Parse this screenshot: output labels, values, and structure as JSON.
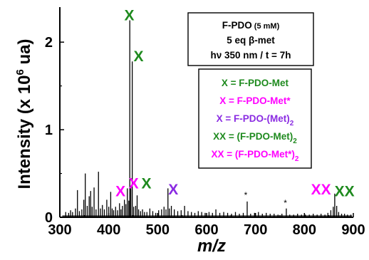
{
  "chart_data": {
    "type": "line",
    "title": "",
    "xlabel": "m/z",
    "ylabel_main": "Intensity (x 10",
    "ylabel_sup": "6",
    "ylabel_tail": " ua)",
    "xlim": [
      300,
      900
    ],
    "ylim": [
      0,
      2.4
    ],
    "x_ticks": [
      300,
      400,
      500,
      600,
      700,
      800,
      900
    ],
    "y_ticks": [
      0,
      1,
      2
    ],
    "grid": false,
    "colors": {
      "green": "#1e8a1e",
      "magenta": "#ff00ff",
      "purple": "#8a2be2",
      "spectrum": "#000000"
    },
    "conditions_box": {
      "line1_main": "F-PDO",
      "line1_small": " (5 mM)",
      "line2": "5 eq β-met",
      "line3": "hν 350 nm / t = 7h"
    },
    "legend": [
      {
        "label": "X = F-PDO-Met",
        "sub": "",
        "color": "green"
      },
      {
        "label": "X = F-PDO-Met*",
        "sub": "",
        "color": "magenta"
      },
      {
        "label": "X = F-PDO-(Met)",
        "sub": "2",
        "color": "purple"
      },
      {
        "label": "XX = (F-PDO-Met)",
        "sub": "2",
        "color": "green"
      },
      {
        "label": "XX = (F-PDO-Met*)",
        "sub": "2",
        "color": "magenta"
      }
    ],
    "peak_labels": [
      {
        "text": "X",
        "x": 442,
        "y": 2.25,
        "color": "green"
      },
      {
        "text": "X",
        "x": 461,
        "y": 1.78,
        "color": "green"
      },
      {
        "text": "X",
        "x": 424,
        "y": 0.24,
        "color": "magenta"
      },
      {
        "text": "X",
        "x": 451,
        "y": 0.33,
        "color": "magenta"
      },
      {
        "text": "X",
        "x": 477,
        "y": 0.33,
        "color": "green"
      },
      {
        "text": "X",
        "x": 532,
        "y": 0.26,
        "color": "purple"
      },
      {
        "text": "XX",
        "x": 834,
        "y": 0.26,
        "color": "magenta"
      },
      {
        "text": "XX",
        "x": 882,
        "y": 0.24,
        "color": "green"
      }
    ],
    "stars": [
      {
        "text": "*",
        "x": 680,
        "y": 0.22
      },
      {
        "text": "*",
        "x": 761,
        "y": 0.13
      }
    ],
    "series": [
      {
        "points": [
          [
            312,
            0.06
          ],
          [
            318,
            0.05
          ],
          [
            322,
            0.08
          ],
          [
            326,
            0.06
          ],
          [
            332,
            0.1
          ],
          [
            336,
            0.31
          ],
          [
            340,
            0.07
          ],
          [
            345,
            0.09
          ],
          [
            349,
            0.2
          ],
          [
            352,
            0.5
          ],
          [
            356,
            0.13
          ],
          [
            360,
            0.24
          ],
          [
            363,
            0.3
          ],
          [
            366,
            0.12
          ],
          [
            370,
            0.34
          ],
          [
            374,
            0.09
          ],
          [
            379,
            0.52
          ],
          [
            383,
            0.1
          ],
          [
            387,
            0.14
          ],
          [
            391,
            0.09
          ],
          [
            396,
            0.2
          ],
          [
            400,
            0.12
          ],
          [
            404,
            0.29
          ],
          [
            407,
            0.1
          ],
          [
            410,
            0.08
          ],
          [
            414,
            0.12
          ],
          [
            418,
            0.08
          ],
          [
            422,
            0.16
          ],
          [
            425,
            0.09
          ],
          [
            428,
            0.13
          ],
          [
            432,
            0.2
          ],
          [
            435,
            0.15
          ],
          [
            438,
            0.33
          ],
          [
            441,
            0.19
          ],
          [
            443,
            2.25
          ],
          [
            445,
            0.35
          ],
          [
            448,
            1.78
          ],
          [
            451,
            0.12
          ],
          [
            455,
            0.13
          ],
          [
            458,
            0.25
          ],
          [
            461,
            0.09
          ],
          [
            465,
            0.07
          ],
          [
            469,
            0.09
          ],
          [
            473,
            0.06
          ],
          [
            478,
            0.06
          ],
          [
            484,
            0.1
          ],
          [
            490,
            0.07
          ],
          [
            496,
            0.05
          ],
          [
            502,
            0.08
          ],
          [
            508,
            0.09
          ],
          [
            513,
            0.12
          ],
          [
            517,
            0.09
          ],
          [
            521,
            0.33
          ],
          [
            524,
            0.1
          ],
          [
            528,
            0.13
          ],
          [
            534,
            0.09
          ],
          [
            541,
            0.07
          ],
          [
            548,
            0.08
          ],
          [
            555,
            0.13
          ],
          [
            562,
            0.07
          ],
          [
            569,
            0.06
          ],
          [
            576,
            0.05
          ],
          [
            583,
            0.07
          ],
          [
            590,
            0.06
          ],
          [
            597,
            0.05
          ],
          [
            605,
            0.06
          ],
          [
            612,
            0.05
          ],
          [
            619,
            0.09
          ],
          [
            627,
            0.05
          ],
          [
            635,
            0.06
          ],
          [
            643,
            0.05
          ],
          [
            651,
            0.04
          ],
          [
            659,
            0.06
          ],
          [
            667,
            0.04
          ],
          [
            675,
            0.05
          ],
          [
            683,
            0.18
          ],
          [
            690,
            0.04
          ],
          [
            698,
            0.05
          ],
          [
            706,
            0.06
          ],
          [
            714,
            0.04
          ],
          [
            722,
            0.05
          ],
          [
            730,
            0.04
          ],
          [
            738,
            0.04
          ],
          [
            746,
            0.03
          ],
          [
            754,
            0.04
          ],
          [
            763,
            0.1
          ],
          [
            770,
            0.03
          ],
          [
            778,
            0.03
          ],
          [
            786,
            0.04
          ],
          [
            794,
            0.03
          ],
          [
            802,
            0.03
          ],
          [
            810,
            0.03
          ],
          [
            818,
            0.04
          ],
          [
            826,
            0.03
          ],
          [
            834,
            0.04
          ],
          [
            842,
            0.03
          ],
          [
            848,
            0.05
          ],
          [
            854,
            0.08
          ],
          [
            859,
            0.12
          ],
          [
            862,
            0.27
          ],
          [
            866,
            0.13
          ],
          [
            870,
            0.06
          ],
          [
            876,
            0.04
          ],
          [
            882,
            0.04
          ],
          [
            888,
            0.03
          ],
          [
            895,
            0.03
          ]
        ]
      }
    ]
  }
}
